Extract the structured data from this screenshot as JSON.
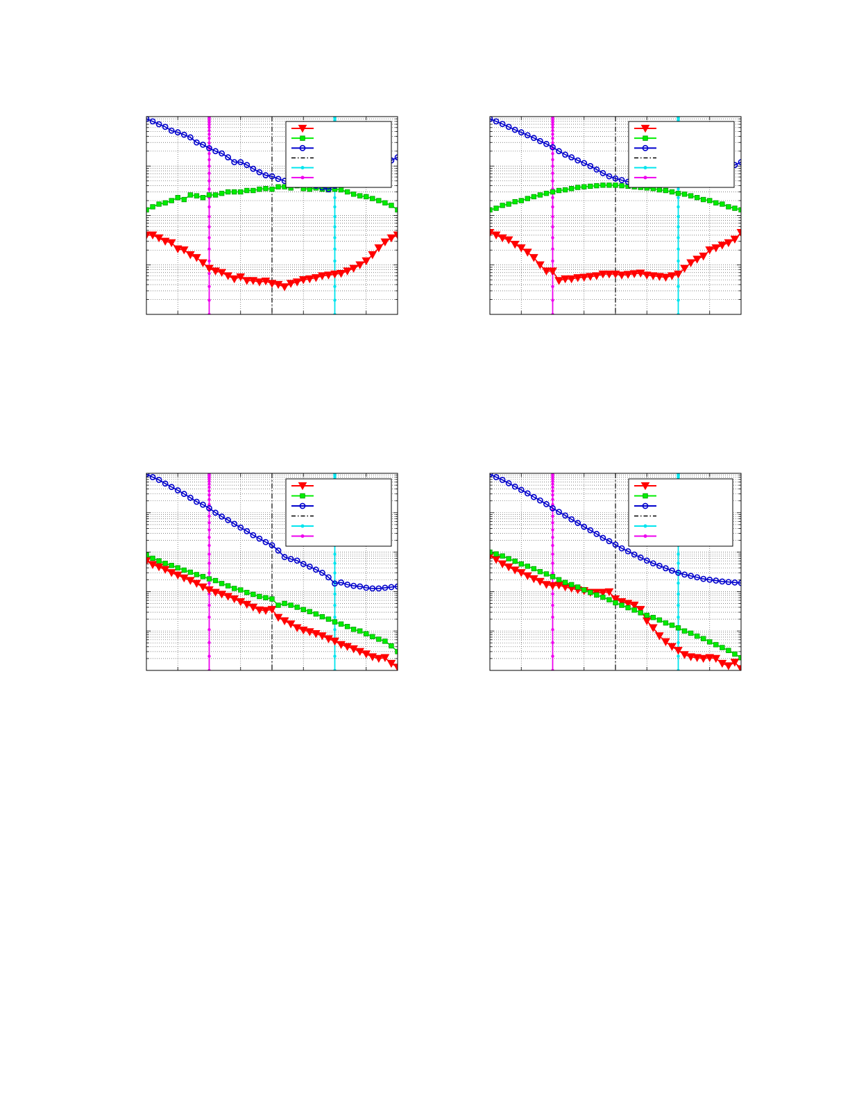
{
  "colors": {
    "red": "#ff0000",
    "green": "#00ee00",
    "blue": "#0000cc",
    "black": "#000000",
    "cyan": "#00e5ee",
    "magenta": "#ee00ee",
    "grid": "#555555",
    "frame": "#000000"
  },
  "chart_data": [
    {
      "type": "line",
      "yscale": "log",
      "xlim": [
        0,
        40
      ],
      "ylim": [
        0.001,
        10
      ],
      "grid": true,
      "legend_position": "top-right",
      "legend_entries": [
        "",
        "",
        "",
        "",
        "",
        ""
      ],
      "vlines": [
        {
          "x": 10,
          "style": "solid-dots",
          "color": "magenta"
        },
        {
          "x": 20,
          "style": "dashdot",
          "color": "black"
        },
        {
          "x": 30,
          "style": "solid-dots",
          "color": "cyan"
        }
      ],
      "series": [
        {
          "marker": "triangle-down",
          "color": "red",
          "values": [
            0.04,
            0.04,
            0.035,
            0.03,
            0.028,
            0.021,
            0.02,
            0.016,
            0.014,
            0.011,
            0.0085,
            0.0075,
            0.007,
            0.006,
            0.0052,
            0.0057,
            0.0048,
            0.0048,
            0.0045,
            0.0047,
            0.0042,
            0.004,
            0.0036,
            0.0042,
            0.0045,
            0.005,
            0.0052,
            0.0055,
            0.006,
            0.0062,
            0.0065,
            0.0067,
            0.0075,
            0.0085,
            0.01,
            0.012,
            0.016,
            0.022,
            0.029,
            0.035,
            0.04
          ]
        },
        {
          "marker": "square",
          "color": "green",
          "values": [
            0.13,
            0.15,
            0.17,
            0.18,
            0.2,
            0.23,
            0.21,
            0.26,
            0.25,
            0.23,
            0.26,
            0.26,
            0.28,
            0.3,
            0.3,
            0.3,
            0.32,
            0.32,
            0.34,
            0.35,
            0.34,
            0.38,
            0.38,
            0.36,
            0.4,
            0.35,
            0.34,
            0.36,
            0.34,
            0.33,
            0.34,
            0.33,
            0.3,
            0.27,
            0.25,
            0.24,
            0.22,
            0.2,
            0.18,
            0.16,
            0.13
          ]
        },
        {
          "marker": "circle",
          "color": "blue",
          "values": [
            9.0,
            8.0,
            7.0,
            6.2,
            5.2,
            4.8,
            4.3,
            3.8,
            3.0,
            2.7,
            2.3,
            2.0,
            1.8,
            1.5,
            1.2,
            1.2,
            1.05,
            0.88,
            0.75,
            0.65,
            0.62,
            0.55,
            0.5,
            0.46,
            0.45,
            0.46,
            0.44,
            0.4,
            0.37,
            0.34,
            0.4,
            0.45,
            0.5,
            0.56,
            0.63,
            0.72,
            0.82,
            0.95,
            1.1,
            1.3,
            1.5
          ]
        }
      ]
    },
    {
      "type": "line",
      "yscale": "log",
      "xlim": [
        0,
        40
      ],
      "ylim": [
        0.001,
        10
      ],
      "grid": true,
      "legend_position": "top-right",
      "legend_entries": [
        "",
        "",
        "",
        "",
        "",
        ""
      ],
      "vlines": [
        {
          "x": 10,
          "style": "solid-dots",
          "color": "magenta"
        },
        {
          "x": 20,
          "style": "dashdot",
          "color": "black"
        },
        {
          "x": 30,
          "style": "solid-dots",
          "color": "cyan"
        }
      ],
      "series": [
        {
          "marker": "triangle-down",
          "color": "red",
          "values": [
            0.045,
            0.04,
            0.035,
            0.032,
            0.026,
            0.022,
            0.018,
            0.014,
            0.01,
            0.0075,
            0.0075,
            0.0048,
            0.0052,
            0.0052,
            0.0055,
            0.0056,
            0.0058,
            0.006,
            0.0065,
            0.0065,
            0.0065,
            0.0062,
            0.0064,
            0.0066,
            0.0068,
            0.0062,
            0.006,
            0.0058,
            0.0056,
            0.006,
            0.0065,
            0.0085,
            0.011,
            0.013,
            0.015,
            0.02,
            0.022,
            0.025,
            0.028,
            0.033,
            0.045
          ]
        },
        {
          "marker": "square",
          "color": "green",
          "values": [
            0.13,
            0.14,
            0.16,
            0.17,
            0.19,
            0.2,
            0.22,
            0.24,
            0.26,
            0.28,
            0.3,
            0.32,
            0.33,
            0.35,
            0.37,
            0.38,
            0.39,
            0.4,
            0.41,
            0.41,
            0.41,
            0.4,
            0.39,
            0.38,
            0.37,
            0.36,
            0.35,
            0.33,
            0.32,
            0.3,
            0.28,
            0.27,
            0.25,
            0.23,
            0.21,
            0.2,
            0.18,
            0.17,
            0.15,
            0.14,
            0.13
          ]
        },
        {
          "marker": "circle",
          "color": "blue",
          "values": [
            9.0,
            8.0,
            7.1,
            6.2,
            5.4,
            4.8,
            4.2,
            3.7,
            3.2,
            2.8,
            2.4,
            2.0,
            1.7,
            1.5,
            1.3,
            1.15,
            1.0,
            0.85,
            0.72,
            0.62,
            0.56,
            0.52,
            0.48,
            0.46,
            0.44,
            0.43,
            0.42,
            0.42,
            0.43,
            0.44,
            0.46,
            0.5,
            0.54,
            0.58,
            0.63,
            0.68,
            0.74,
            0.82,
            0.92,
            1.05,
            1.2
          ]
        }
      ]
    },
    {
      "type": "line",
      "yscale": "log",
      "xlim": [
        0,
        40
      ],
      "ylim": [
        0.0001,
        10
      ],
      "grid": true,
      "legend_position": "top-right",
      "legend_entries": [
        "",
        "",
        "",
        "",
        "",
        ""
      ],
      "vlines": [
        {
          "x": 10,
          "style": "solid-dots",
          "color": "magenta"
        },
        {
          "x": 20,
          "style": "dashdot",
          "color": "black"
        },
        {
          "x": 30,
          "style": "solid-dots",
          "color": "cyan"
        }
      ],
      "series": [
        {
          "marker": "triangle-down",
          "color": "red",
          "values": [
            0.06,
            0.048,
            0.042,
            0.036,
            0.03,
            0.026,
            0.022,
            0.019,
            0.016,
            0.013,
            0.011,
            0.0095,
            0.0085,
            0.0075,
            0.0065,
            0.0055,
            0.0047,
            0.004,
            0.0034,
            0.0033,
            0.0035,
            0.0022,
            0.0018,
            0.0015,
            0.0012,
            0.00105,
            0.00095,
            0.00085,
            0.00075,
            0.00063,
            0.00055,
            0.00045,
            0.0004,
            0.00035,
            0.0003,
            0.00026,
            0.00022,
            0.0002,
            0.00021,
            0.00015,
            0.00012
          ]
        },
        {
          "marker": "square",
          "color": "green",
          "values": [
            0.085,
            0.07,
            0.06,
            0.052,
            0.046,
            0.04,
            0.035,
            0.031,
            0.027,
            0.024,
            0.021,
            0.019,
            0.016,
            0.014,
            0.012,
            0.011,
            0.0095,
            0.0085,
            0.0075,
            0.007,
            0.0065,
            0.0045,
            0.005,
            0.0045,
            0.004,
            0.0035,
            0.0031,
            0.0027,
            0.0023,
            0.002,
            0.0017,
            0.0015,
            0.0013,
            0.0011,
            0.001,
            0.00085,
            0.00072,
            0.00062,
            0.00055,
            0.00042,
            0.0003
          ]
        },
        {
          "marker": "circle",
          "color": "blue",
          "values": [
            9.5,
            8.0,
            6.8,
            5.5,
            4.5,
            3.7,
            3.0,
            2.4,
            1.9,
            1.6,
            1.3,
            1.0,
            0.8,
            0.65,
            0.52,
            0.42,
            0.34,
            0.27,
            0.22,
            0.18,
            0.15,
            0.11,
            0.075,
            0.067,
            0.061,
            0.05,
            0.043,
            0.036,
            0.03,
            0.023,
            0.016,
            0.017,
            0.015,
            0.014,
            0.0135,
            0.0125,
            0.012,
            0.012,
            0.0125,
            0.013,
            0.0135
          ]
        }
      ]
    },
    {
      "type": "line",
      "yscale": "log",
      "xlim": [
        0,
        40
      ],
      "ylim": [
        0.0001,
        10
      ],
      "grid": true,
      "legend_position": "top-right",
      "legend_entries": [
        "",
        "",
        "",
        "",
        "",
        ""
      ],
      "vlines": [
        {
          "x": 10,
          "style": "solid-dots",
          "color": "magenta"
        },
        {
          "x": 20,
          "style": "dashdot",
          "color": "black"
        },
        {
          "x": 30,
          "style": "solid-dots",
          "color": "cyan"
        }
      ],
      "series": [
        {
          "marker": "triangle-down",
          "color": "red",
          "values": [
            0.08,
            0.065,
            0.05,
            0.042,
            0.035,
            0.03,
            0.025,
            0.021,
            0.018,
            0.015,
            0.014,
            0.0145,
            0.013,
            0.012,
            0.011,
            0.0105,
            0.0095,
            0.0095,
            0.0095,
            0.0098,
            0.0065,
            0.0055,
            0.005,
            0.0045,
            0.0035,
            0.0018,
            0.0012,
            0.00075,
            0.00053,
            0.0004,
            0.00032,
            0.00025,
            0.00022,
            0.00021,
            0.0002,
            0.00021,
            0.0002,
            0.00015,
            0.00013,
            0.00016,
            0.00011
          ]
        },
        {
          "marker": "square",
          "color": "green",
          "values": [
            0.1,
            0.09,
            0.08,
            0.068,
            0.059,
            0.05,
            0.044,
            0.038,
            0.032,
            0.028,
            0.024,
            0.02,
            0.017,
            0.015,
            0.013,
            0.011,
            0.0095,
            0.0082,
            0.0072,
            0.0062,
            0.0052,
            0.0045,
            0.0039,
            0.0034,
            0.0029,
            0.0025,
            0.0022,
            0.0019,
            0.0016,
            0.0014,
            0.0012,
            0.001,
            0.00088,
            0.00074,
            0.00064,
            0.00053,
            0.00045,
            0.00038,
            0.00032,
            0.00026,
            0.00021
          ]
        },
        {
          "marker": "circle",
          "color": "blue",
          "values": [
            9.5,
            8.0,
            6.8,
            5.6,
            4.6,
            3.8,
            3.1,
            2.5,
            2.05,
            1.65,
            1.3,
            1.05,
            0.85,
            0.68,
            0.55,
            0.44,
            0.36,
            0.29,
            0.23,
            0.19,
            0.155,
            0.125,
            0.105,
            0.087,
            0.073,
            0.061,
            0.052,
            0.045,
            0.039,
            0.034,
            0.03,
            0.027,
            0.025,
            0.023,
            0.021,
            0.02,
            0.019,
            0.018,
            0.0175,
            0.017,
            0.0165
          ]
        }
      ]
    }
  ]
}
